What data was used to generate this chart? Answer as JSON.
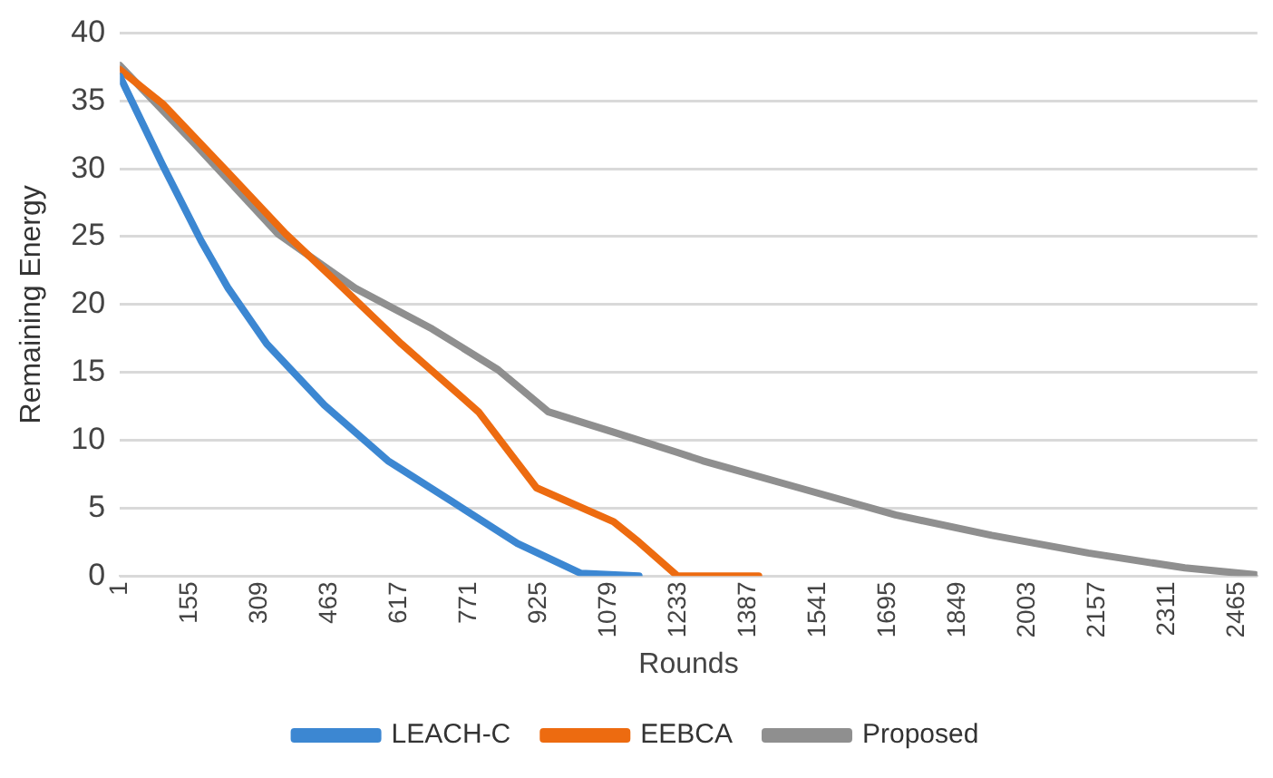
{
  "chart_data": {
    "type": "line",
    "xlabel": "Rounds",
    "ylabel": "Remaining Energy",
    "xlim": [
      1,
      2510
    ],
    "xticks": [
      1,
      155,
      309,
      463,
      617,
      771,
      925,
      1079,
      1233,
      1387,
      1541,
      1695,
      1849,
      2003,
      2157,
      2311,
      2465
    ],
    "ylim": [
      0,
      40
    ],
    "yticks": [
      0,
      5,
      10,
      15,
      20,
      25,
      30,
      35,
      40
    ],
    "grid": "y",
    "legend": "bottom",
    "marker": "none",
    "line_style": "solid",
    "series": [
      {
        "name": "LEACH-C",
        "color": "#3c87d2",
        "x": [
          1,
          95,
          180,
          240,
          325,
          452,
          592,
          733,
          878,
          1018,
          1146
        ],
        "values": [
          36.8,
          30.3,
          24.7,
          21.2,
          17.1,
          12.6,
          8.5,
          5.5,
          2.4,
          0.2,
          0
        ]
      },
      {
        "name": "EEBCA",
        "color": "#ed6b10",
        "x": [
          1,
          95,
          240,
          367,
          478,
          622,
          792,
          920,
          1090,
          1146,
          1231,
          1410
        ],
        "values": [
          37.3,
          34.8,
          29.7,
          25.2,
          21.7,
          17.1,
          12.1,
          6.5,
          4,
          2.5,
          0,
          0
        ]
      },
      {
        "name": "Proposed",
        "color": "#8f8f8f",
        "x": [
          1,
          167,
          350,
          520,
          690,
          835,
          946,
          1090,
          1231,
          1286,
          1499,
          1712,
          1924,
          2137,
          2350,
          2505
        ],
        "values": [
          37.6,
          31.8,
          25.2,
          21.2,
          18.2,
          15.2,
          12.1,
          10.6,
          9.1,
          8.5,
          6.5,
          4.5,
          3,
          1.7,
          0.6,
          0.1
        ]
      }
    ]
  }
}
